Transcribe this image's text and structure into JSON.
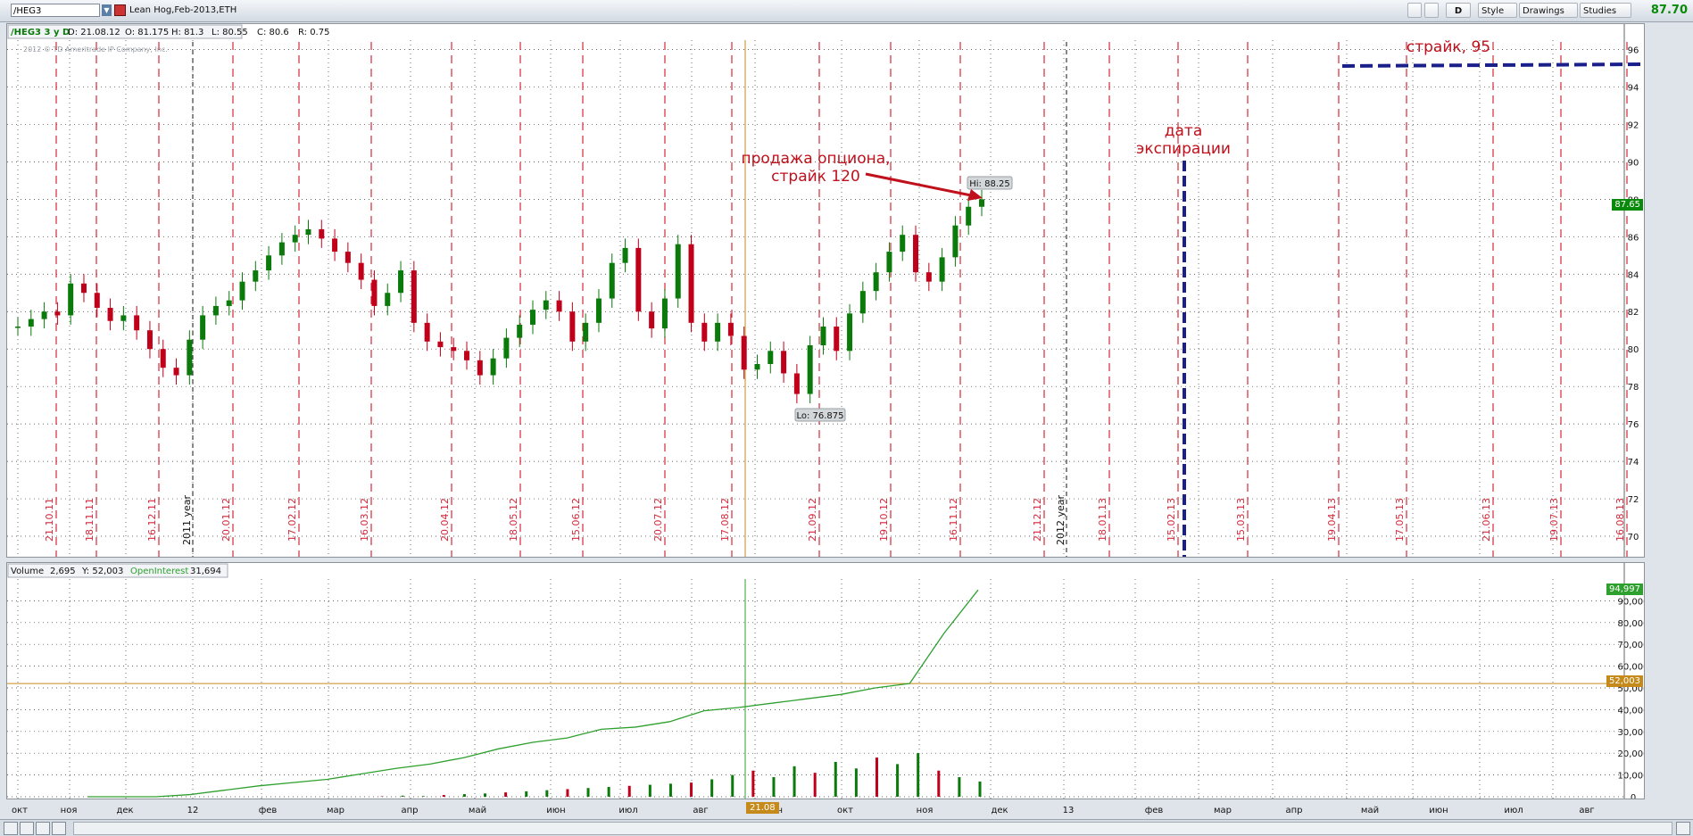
{
  "toolbar": {
    "symbol": "/HEG3",
    "description": "Lean Hog,Feb-2013,ETH",
    "period_button": "D",
    "style_label": "Style",
    "drawings_label": "Drawings",
    "studies_label": "Studies",
    "last_price": "87.70"
  },
  "price_header": {
    "label": "/HEG3 3 y D",
    "date": "D: 21.08.12",
    "open": "O: 81.175",
    "high": "H: 81.3",
    "low": "L: 80.55",
    "close": "C: 80.6",
    "range": "R: 0.75",
    "copyright": "2012 © TD Ameritrade IP Company, Inc."
  },
  "volume_header": {
    "volume_label": "Volume",
    "volume_value": "2,695",
    "y_value": "Y: 52,003",
    "oi_label": "OpenInterest",
    "oi_value": "31,694"
  },
  "colors": {
    "up_candle": "#0a7a0a",
    "down_candle": "#c0001a",
    "event_line": "#d4283a",
    "open_interest": "#2ea02e",
    "annotation": "#c0101c",
    "strike_line": "#1b1f8a"
  },
  "chart_data": [
    {
      "type": "line",
      "name": "price",
      "series": [
        {
          "values": [
            81.2,
            81.6,
            82.0,
            81.8,
            83.5,
            83.0,
            82.2,
            81.5,
            81.8,
            81.0,
            80.0,
            79.0,
            78.6,
            80.5,
            81.8,
            82.3,
            82.6,
            83.6,
            84.2,
            85.0,
            85.7,
            86.1,
            86.4,
            85.9,
            85.2,
            84.6,
            83.7,
            82.3,
            83.0,
            84.2,
            81.4,
            80.4,
            80.1,
            79.9,
            79.4,
            78.6,
            79.5,
            80.6,
            81.3,
            82.1,
            82.6,
            82.0,
            80.4,
            81.4,
            82.7,
            84.6,
            85.4,
            82.0,
            81.1,
            82.7,
            85.6,
            81.4,
            80.4,
            81.4,
            80.7,
            78.9,
            79.2,
            79.9,
            78.7,
            77.6,
            80.2,
            81.2,
            79.9,
            81.9,
            83.1,
            84.1,
            85.2,
            86.1,
            84.1,
            83.6,
            84.9,
            86.6,
            87.6,
            88.0
          ]
        }
      ],
      "ylim": [
        69,
        96.5
      ],
      "yticks": [
        "70",
        "72",
        "74",
        "76",
        "78",
        "80",
        "82",
        "84",
        "86",
        "88",
        "90",
        "92",
        "94",
        "96"
      ],
      "price_tag": "87.65",
      "high_label": "Hi: 88.25",
      "low_label": "Lo: 76.875",
      "event_dates": [
        "21.10.11",
        "18.11.11",
        "16.12.11",
        "20.01.12",
        "17.02.12",
        "16.03.12",
        "20.04.12",
        "18.05.12",
        "15.06.12",
        "20.07.12",
        "17.08.12",
        "21.09.12",
        "19.10.12",
        "16.11.12",
        "21.12.12",
        "18.01.13",
        "15.02.13",
        "15.03.13",
        "19.04.13",
        "17.05.13",
        "21.06.13",
        "19.07.13",
        "16.08.13"
      ],
      "year_markers": [
        "2011 year",
        "2012 year"
      ],
      "annotations": [
        {
          "text_line1": "продажа опциона,",
          "text_line2": "страйк 120"
        },
        {
          "text_line1": "дата",
          "text_line2": "экспирации"
        },
        {
          "text_line1": "страйк, 95"
        }
      ]
    },
    {
      "type": "line",
      "name": "OpenInterest",
      "series": [
        {
          "name": "OpenInterest",
          "values": [
            0,
            0,
            0,
            1000,
            3000,
            5000,
            6500,
            8000,
            10500,
            13000,
            15000,
            18000,
            22000,
            25000,
            27000,
            31000,
            32000,
            34500,
            39500,
            41000,
            43000,
            45000,
            47000,
            50000,
            52000,
            75000,
            95000
          ]
        }
      ],
      "ylim": [
        0,
        100000
      ],
      "yticks": [
        "0",
        "10,000",
        "20,000",
        "30,000",
        "40,000",
        "50,000",
        "60,000",
        "70,000",
        "80,000",
        "90,000"
      ],
      "oi_tag": "94,997",
      "y_tag": "52,003"
    },
    {
      "type": "bar",
      "name": "volume",
      "values": [
        200,
        500,
        300,
        800,
        1200,
        1500,
        2000,
        2500,
        3000,
        3500,
        4000,
        4500,
        5000,
        5500,
        6000,
        6500,
        8000,
        10000,
        12000,
        9000,
        14000,
        11000,
        16000,
        13000,
        18000,
        15000,
        20000,
        12000,
        9000,
        7000
      ]
    }
  ],
  "x_axis": {
    "months": [
      "окт",
      "ноя",
      "дек",
      "12",
      "фев",
      "мар",
      "апр",
      "май",
      "июн",
      "июл",
      "авг",
      "сен",
      "окт",
      "ноя",
      "дек",
      "13",
      "фев",
      "мар",
      "апр",
      "май",
      "июн",
      "июл",
      "авг"
    ],
    "cursor_label": "21.08"
  }
}
